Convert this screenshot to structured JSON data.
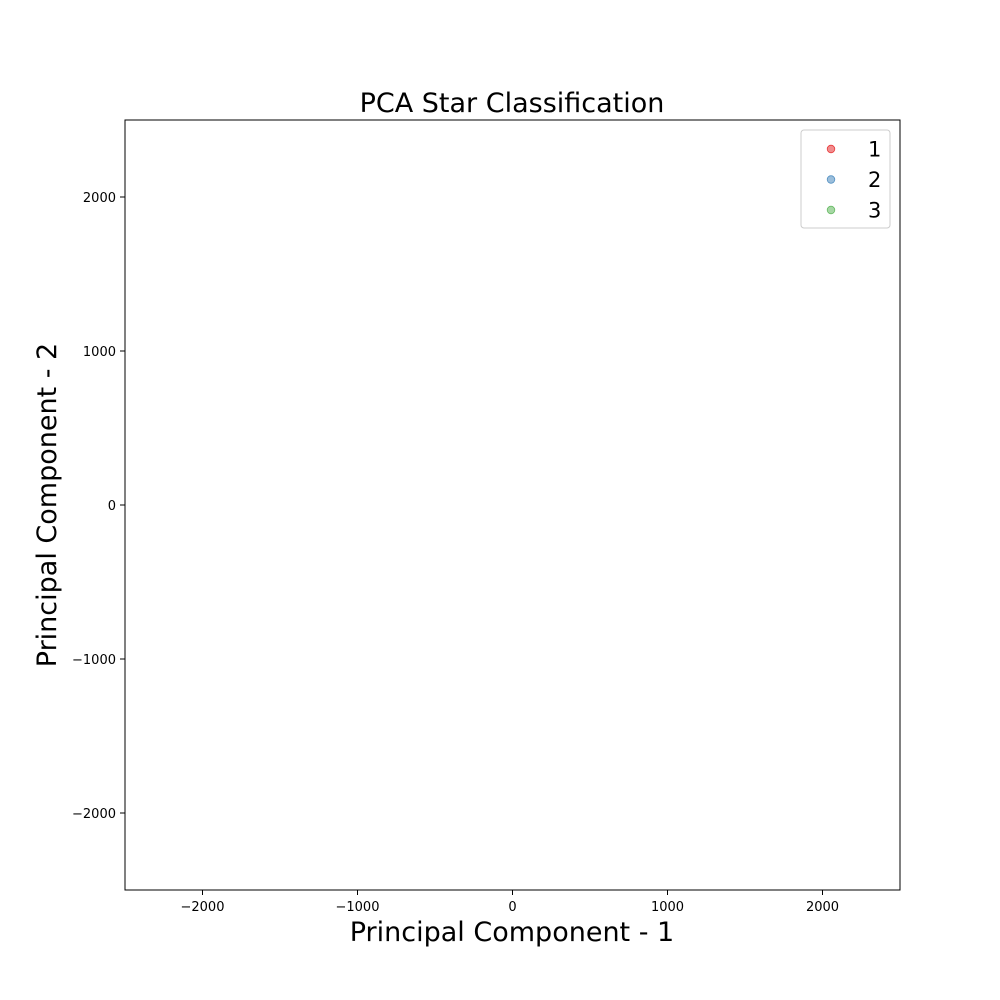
{
  "chart_data": {
    "type": "scatter",
    "title": "PCA Star Classification",
    "xlabel": "Principal Component - 1",
    "ylabel": "Principal Component - 2",
    "xlim": [
      -2500,
      2500
    ],
    "ylim": [
      -2500,
      2500
    ],
    "xticks": [
      -2000,
      -1000,
      0,
      1000,
      2000
    ],
    "xtick_labels": [
      "−2000",
      "−1000",
      "0",
      "1000",
      "2000"
    ],
    "yticks": [
      -2000,
      -1000,
      0,
      1000,
      2000
    ],
    "ytick_labels": [
      "−2000",
      "−1000",
      "0",
      "1000",
      "2000"
    ],
    "grid": false,
    "legend_position": "top-right",
    "series": [
      {
        "name": "1",
        "color": "#e41a1c",
        "alpha": 0.5,
        "points": []
      },
      {
        "name": "2",
        "color": "#377eb8",
        "alpha": 0.5,
        "points": []
      },
      {
        "name": "3",
        "color": "#4daf4a",
        "alpha": 0.5,
        "points": []
      }
    ]
  }
}
